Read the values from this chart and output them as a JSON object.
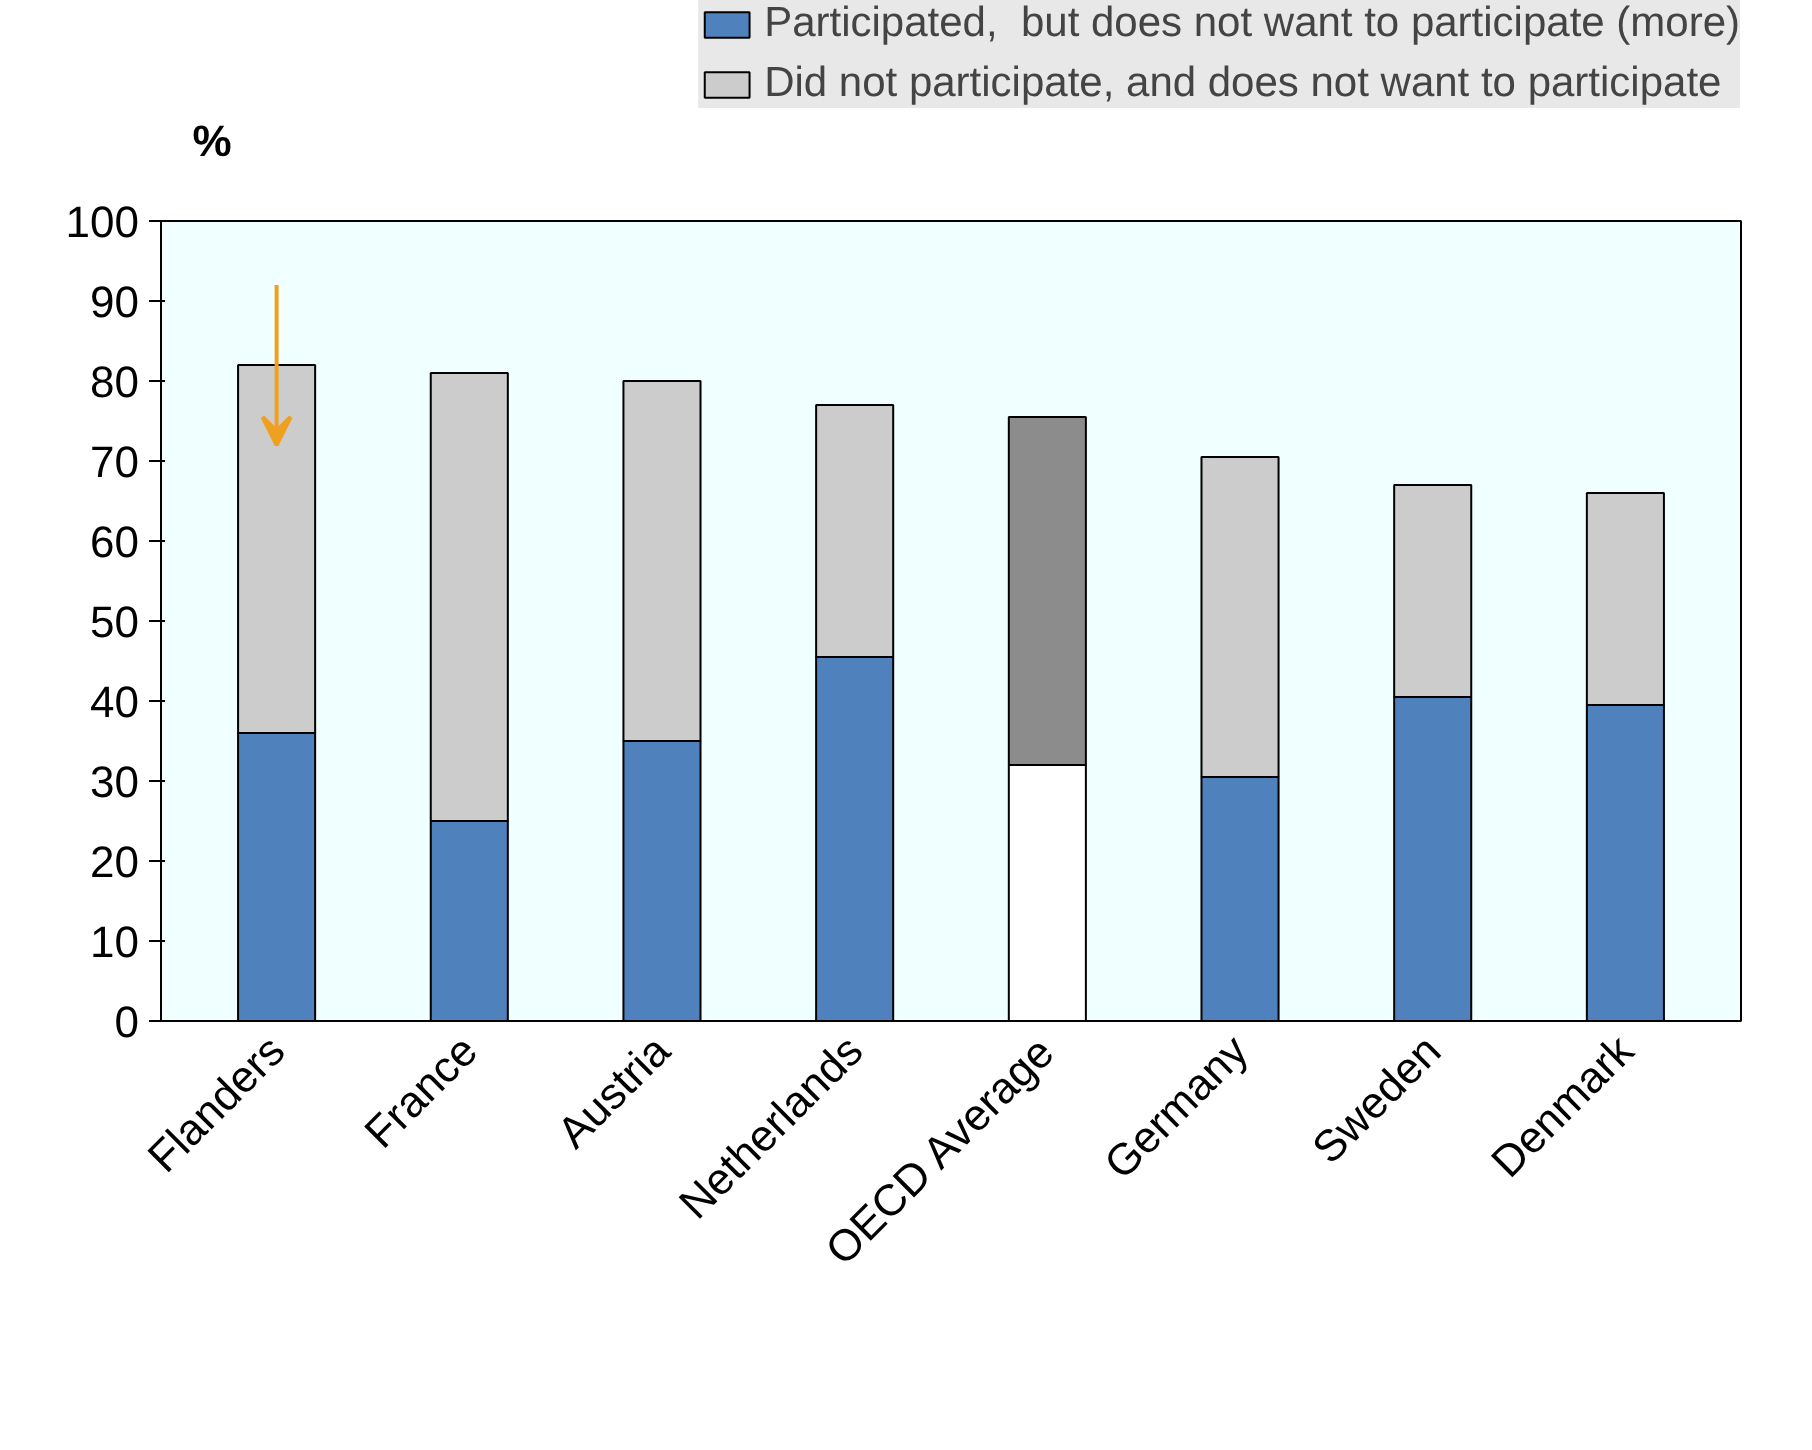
{
  "chart_data": {
    "type": "bar",
    "stacked": true,
    "ylabel": "%",
    "categories": [
      "Flanders",
      "France",
      "Austria",
      "Netherlands",
      "OECD Average",
      "Germany",
      "Sweden",
      "Denmark"
    ],
    "series": [
      {
        "name": "Participated,  but does not want to participate (more)",
        "color": "#4f81bd",
        "colors": [
          "#4f81bd",
          "#4f81bd",
          "#4f81bd",
          "#4f81bd",
          "#ffffff",
          "#4f81bd",
          "#4f81bd",
          "#4f81bd"
        ],
        "values": [
          36,
          25,
          35,
          45.5,
          32,
          30.5,
          40.5,
          39.5
        ]
      },
      {
        "name": "Did not participate, and does not want to participate",
        "color": "#cccccc",
        "colors": [
          "#cccccc",
          "#cccccc",
          "#cccccc",
          "#cccccc",
          "#8c8c8c",
          "#cccccc",
          "#cccccc",
          "#cccccc"
        ],
        "values": [
          46,
          56,
          45,
          31.5,
          43.5,
          40,
          26.5,
          26.5
        ]
      }
    ],
    "ylim": [
      0,
      100
    ],
    "yticks": [
      0,
      10,
      20,
      30,
      40,
      50,
      60,
      70,
      80,
      90,
      100
    ],
    "grid": false,
    "legend": "top"
  }
}
